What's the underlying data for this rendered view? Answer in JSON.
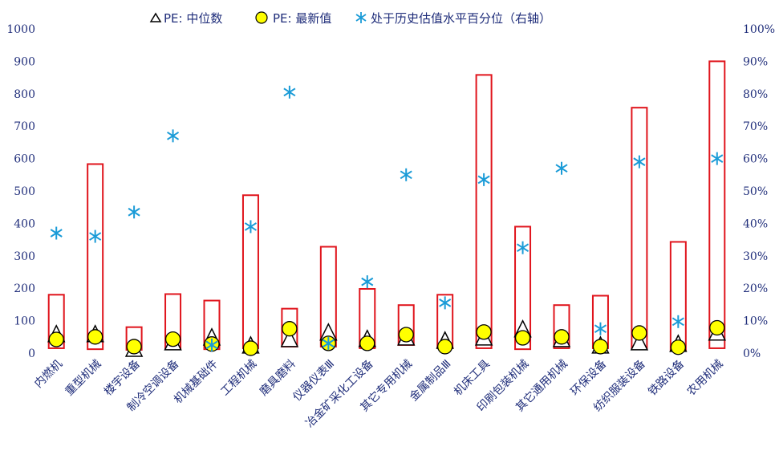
{
  "chart_data": {
    "type": "bar",
    "categories": [
      "内燃机",
      "重型机械",
      "楼宇设备",
      "制冷空调设备",
      "机械基础件",
      "工程机械",
      "磨具磨料",
      "仪器仪表Ⅲ",
      "冶金矿采化工设备",
      "其它专用机械",
      "金属制品Ⅲ",
      "机床工具",
      "印刷包装机械",
      "其它通用机械",
      "环保设备",
      "纺织服装设备",
      "铁路设备",
      "农用机械"
    ],
    "range_bars": {
      "low": [
        15,
        12,
        10,
        15,
        12,
        15,
        20,
        20,
        15,
        25,
        15,
        15,
        12,
        15,
        15,
        15,
        10,
        15
      ],
      "high": [
        180,
        583,
        80,
        182,
        162,
        487,
        137,
        328,
        198,
        148,
        180,
        858,
        390,
        148,
        177,
        757,
        343,
        900
      ]
    },
    "series": [
      {
        "name": "PE: 中位数",
        "marker": "triangle",
        "values": [
          55,
          55,
          10,
          30,
          45,
          20,
          40,
          60,
          40,
          45,
          35,
          45,
          70,
          40,
          20,
          30,
          25,
          60
        ]
      },
      {
        "name": "PE: 最新值",
        "marker": "circle",
        "values": [
          42,
          50,
          20,
          43,
          28,
          15,
          75,
          30,
          30,
          57,
          20,
          65,
          47,
          50,
          20,
          62,
          18,
          78
        ]
      },
      {
        "name": "处于历史估值水平百分位（右轴）",
        "marker": "asterisk",
        "axis": "right",
        "values": [
          0.37,
          0.36,
          0.435,
          0.67,
          0.025,
          0.39,
          0.805,
          0.03,
          0.22,
          0.55,
          0.155,
          0.535,
          0.325,
          0.57,
          0.075,
          0.59,
          0.097,
          0.6
        ]
      }
    ],
    "left_axis": {
      "ylim": [
        0,
        1000
      ],
      "ticks": [
        "0",
        "100",
        "200",
        "300",
        "400",
        "500",
        "600",
        "700",
        "800",
        "900",
        "1000"
      ]
    },
    "right_axis": {
      "ylim": [
        0,
        1
      ],
      "ticks": [
        "0%",
        "10%",
        "20%",
        "30%",
        "40%",
        "50%",
        "60%",
        "70%",
        "80%",
        "90%",
        "100%"
      ]
    },
    "legend_position": "top",
    "grid": false
  },
  "colors": {
    "bar_outline": "#e0141c",
    "marker_circle_fill": "#ffff00",
    "marker_outline": "#000000",
    "asterisk": "#1a9bd7",
    "text": "#1f2d7a"
  }
}
